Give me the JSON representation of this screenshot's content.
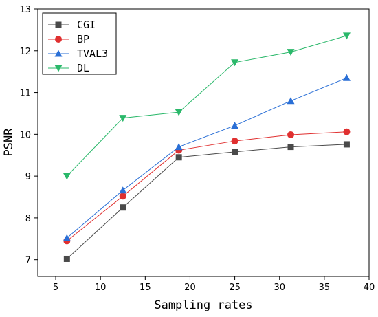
{
  "chart_data": {
    "type": "line",
    "xlabel": "Sampling rates",
    "ylabel": "PSNR",
    "xlim": [
      3,
      40
    ],
    "ylim": [
      6.6,
      13
    ],
    "xticks": [
      5,
      10,
      15,
      20,
      25,
      30,
      35,
      40
    ],
    "yticks": [
      7,
      8,
      9,
      10,
      11,
      12,
      13
    ],
    "grid": false,
    "legend_position": "top-left",
    "x": [
      6.25,
      12.5,
      18.75,
      25,
      31.25,
      37.5
    ],
    "series": [
      {
        "name": "CGI",
        "marker": "square",
        "color": "#4a4a4a",
        "values": [
          7.02,
          8.25,
          9.45,
          9.58,
          9.7,
          9.76
        ]
      },
      {
        "name": "BP",
        "marker": "circle",
        "color": "#e03030",
        "values": [
          7.45,
          8.52,
          9.62,
          9.84,
          9.99,
          10.06
        ]
      },
      {
        "name": "TVAL3",
        "marker": "triangle-up",
        "color": "#2a6fd6",
        "values": [
          7.52,
          8.66,
          9.7,
          10.21,
          10.8,
          11.35
        ]
      },
      {
        "name": "DL",
        "marker": "triangle-down",
        "color": "#2ab86a",
        "values": [
          9.0,
          10.39,
          10.53,
          11.72,
          11.97,
          12.36
        ]
      }
    ]
  }
}
